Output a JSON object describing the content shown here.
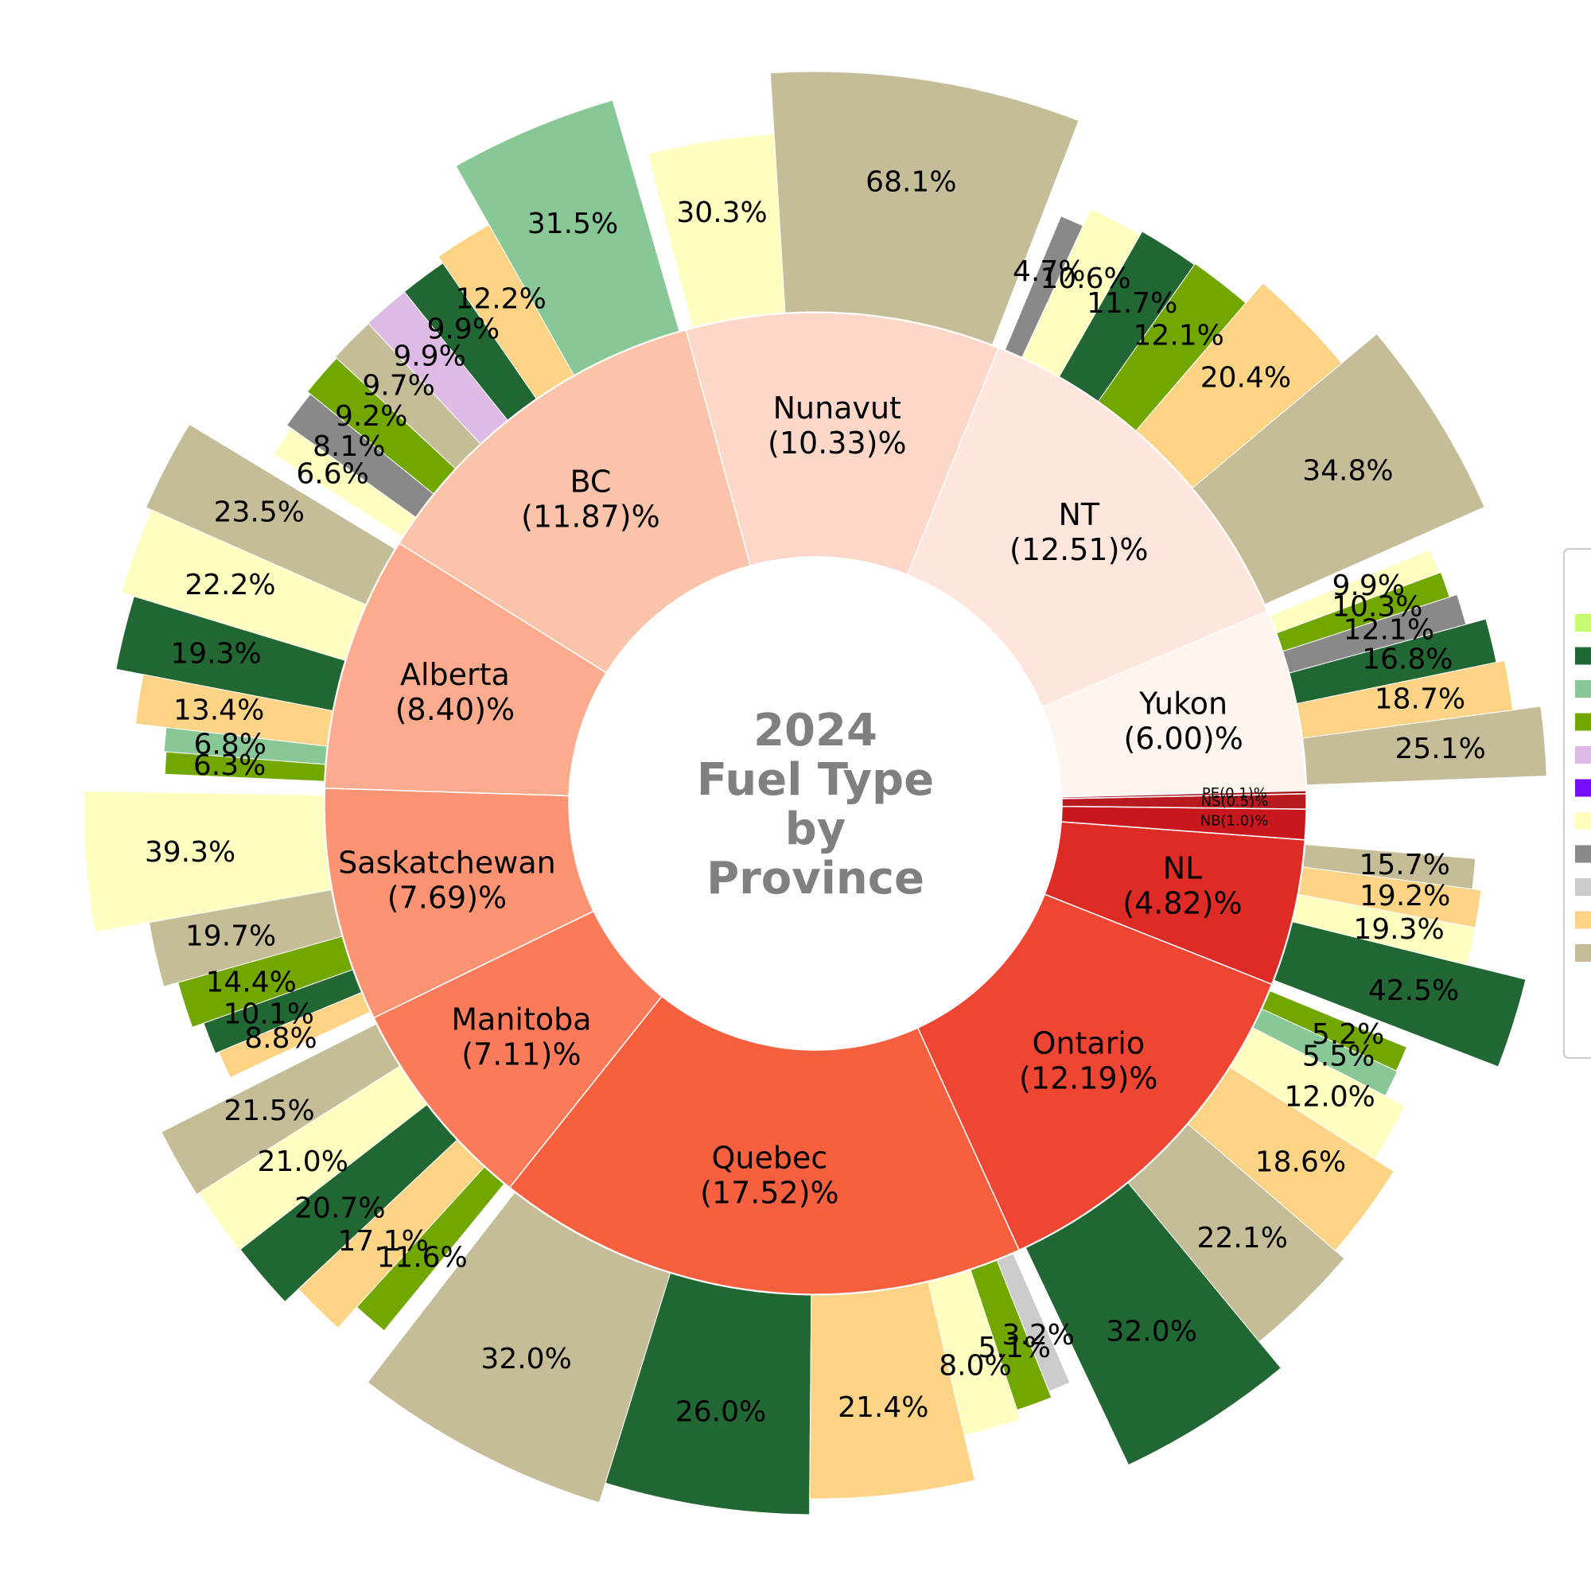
{
  "chart_data": {
    "type": "sunburst-donut",
    "title": "2024\nFuel Type\nby\nProvince",
    "inner_ring": [
      {
        "name": "Yukon",
        "label": "Yukon\n(6.00)%",
        "value": 6.0,
        "color": "#fff5f0"
      },
      {
        "name": "NT",
        "label": "NT\n(12.51)%",
        "value": 12.51,
        "color": "#fee6dc"
      },
      {
        "name": "Nunavut",
        "label": "Nunavut\n(10.33)%",
        "value": 10.33,
        "color": "#fdd8c9"
      },
      {
        "name": "BC",
        "label": "BC\n(11.87)%",
        "value": 11.87,
        "color": "#fcc3ab"
      },
      {
        "name": "Alberta",
        "label": "Alberta\n(8.40)%",
        "value": 8.4,
        "color": "#fcab8f"
      },
      {
        "name": "Saskatchewan",
        "label": "Saskatchewan\n(7.69)%",
        "value": 7.69,
        "color": "#fc9373"
      },
      {
        "name": "Manitoba",
        "label": "Manitoba\n(7.11)%",
        "value": 7.11,
        "color": "#fb7b5b"
      },
      {
        "name": "Quebec",
        "label": "Quebec\n(17.52)%",
        "value": 17.52,
        "color": "#f7603f"
      },
      {
        "name": "Ontario",
        "label": "Ontario\n(12.19)%",
        "value": 12.19,
        "color": "#ef4533"
      },
      {
        "name": "NL",
        "label": "NL\n(4.82)%",
        "value": 4.82,
        "color": "#de2b25"
      },
      {
        "name": "NB",
        "label": "NB(1.0)%",
        "value": 1.0,
        "color": "#c9181d",
        "small": true
      },
      {
        "name": "NS",
        "label": "NS(0.5)%",
        "value": 0.5,
        "color": "#b81a1f",
        "small": true
      },
      {
        "name": "PE",
        "label": "PE(0.1)%",
        "value": 0.1,
        "color": "#a50f15",
        "small": true
      }
    ],
    "outer_ring": [
      {
        "province": "Yukon",
        "segments": [
          {
            "label": "25.1%",
            "value": 25.1,
            "color": "#c4bd97"
          },
          {
            "label": "18.7%",
            "value": 18.7,
            "color": "#fdd385"
          },
          {
            "label": "16.8%",
            "value": 16.8,
            "color": "#216733"
          },
          {
            "label": "12.1%",
            "value": 12.1,
            "color": "#898989"
          },
          {
            "label": "10.3%",
            "value": 10.3,
            "color": "#72a700"
          },
          {
            "label": "9.9%",
            "value": 9.9,
            "color": "#fefec1"
          }
        ]
      },
      {
        "province": "NT",
        "segments": [
          {
            "label": "34.8%",
            "value": 34.8,
            "color": "#c4bd97"
          },
          {
            "label": "20.4%",
            "value": 20.4,
            "color": "#fdd385"
          },
          {
            "label": "12.1%",
            "value": 12.1,
            "color": "#72a700"
          },
          {
            "label": "11.7%",
            "value": 11.7,
            "color": "#216733"
          },
          {
            "label": "10.6%",
            "value": 10.6,
            "color": "#fefec1"
          },
          {
            "label": "4.7%",
            "value": 4.7,
            "color": "#898989"
          }
        ]
      },
      {
        "province": "Nunavut",
        "segments": [
          {
            "label": "68.1%",
            "value": 68.1,
            "color": "#c4bd97"
          },
          {
            "label": "30.3%",
            "value": 30.3,
            "color": "#fefec1"
          }
        ]
      },
      {
        "province": "BC",
        "segments": [
          {
            "label": "31.5%",
            "value": 31.5,
            "color": "#88c896"
          },
          {
            "label": "12.2%",
            "value": 12.2,
            "color": "#fdd385"
          },
          {
            "label": "9.9%",
            "value": 9.9,
            "color": "#216733"
          },
          {
            "label": "9.9%",
            "value": 9.9,
            "color": "#debae6"
          },
          {
            "label": "9.7%",
            "value": 9.7,
            "color": "#c4bd97"
          },
          {
            "label": "9.2%",
            "value": 9.2,
            "color": "#72a700"
          },
          {
            "label": "8.1%",
            "value": 8.1,
            "color": "#898989"
          },
          {
            "label": "6.6%",
            "value": 6.6,
            "color": "#fefec1"
          }
        ]
      },
      {
        "province": "Alberta",
        "segments": [
          {
            "label": "23.5%",
            "value": 23.5,
            "color": "#c4bd97"
          },
          {
            "label": "22.2%",
            "value": 22.2,
            "color": "#fefec1"
          },
          {
            "label": "19.3%",
            "value": 19.3,
            "color": "#216733"
          },
          {
            "label": "13.4%",
            "value": 13.4,
            "color": "#fdd385"
          },
          {
            "label": "6.8%",
            "value": 6.8,
            "color": "#88c896"
          },
          {
            "label": "6.3%",
            "value": 6.3,
            "color": "#72a700"
          }
        ]
      },
      {
        "province": "Saskatchewan",
        "segments": [
          {
            "label": "39.3%",
            "value": 39.3,
            "color": "#fefec1"
          },
          {
            "label": "19.7%",
            "value": 19.7,
            "color": "#c4bd97"
          },
          {
            "label": "14.4%",
            "value": 14.4,
            "color": "#72a700"
          },
          {
            "label": "10.1%",
            "value": 10.1,
            "color": "#216733"
          },
          {
            "label": "8.8%",
            "value": 8.8,
            "color": "#fdd385"
          }
        ]
      },
      {
        "province": "Manitoba",
        "segments": [
          {
            "label": "21.5%",
            "value": 21.5,
            "color": "#c4bd97"
          },
          {
            "label": "21.0%",
            "value": 21.0,
            "color": "#fefec1"
          },
          {
            "label": "20.7%",
            "value": 20.7,
            "color": "#216733"
          },
          {
            "label": "17.1%",
            "value": 17.1,
            "color": "#fdd385"
          },
          {
            "label": "11.6%",
            "value": 11.6,
            "color": "#72a700"
          }
        ]
      },
      {
        "province": "Quebec",
        "segments": [
          {
            "label": "32.0%",
            "value": 32.0,
            "color": "#c4bd97"
          },
          {
            "label": "26.0%",
            "value": 26.0,
            "color": "#216733"
          },
          {
            "label": "21.4%",
            "value": 21.4,
            "color": "#fdd385"
          },
          {
            "label": "8.0%",
            "value": 8.0,
            "color": "#fefec1"
          },
          {
            "label": "5.1%",
            "value": 5.1,
            "color": "#72a700"
          },
          {
            "label": "3.2%",
            "value": 3.2,
            "color": "#cccccc"
          }
        ]
      },
      {
        "province": "Ontario",
        "segments": [
          {
            "label": "32.0%",
            "value": 32.0,
            "color": "#216733"
          },
          {
            "label": "22.1%",
            "value": 22.1,
            "color": "#c4bd97"
          },
          {
            "label": "18.6%",
            "value": 18.6,
            "color": "#fdd385"
          },
          {
            "label": "12.0%",
            "value": 12.0,
            "color": "#fefec1"
          },
          {
            "label": "5.5%",
            "value": 5.5,
            "color": "#88c896"
          },
          {
            "label": "5.2%",
            "value": 5.2,
            "color": "#72a700"
          }
        ]
      },
      {
        "province": "NL",
        "segments": [
          {
            "label": "42.5%",
            "value": 42.5,
            "color": "#216733"
          },
          {
            "label": "19.3%",
            "value": 19.3,
            "color": "#fefec1"
          },
          {
            "label": "19.2%",
            "value": 19.2,
            "color": "#fdd385"
          },
          {
            "label": "15.7%",
            "value": 15.7,
            "color": "#c4bd97"
          }
        ]
      }
    ],
    "legend_colors": [
      "#c6fa6f",
      "#216733",
      "#88c896",
      "#72a700",
      "#debae6",
      "#7a0df8",
      "#fefec1",
      "#898989",
      "#cccccc",
      "#fdd385",
      "#c4bd97"
    ],
    "legend_placement": "right (clipped)"
  }
}
